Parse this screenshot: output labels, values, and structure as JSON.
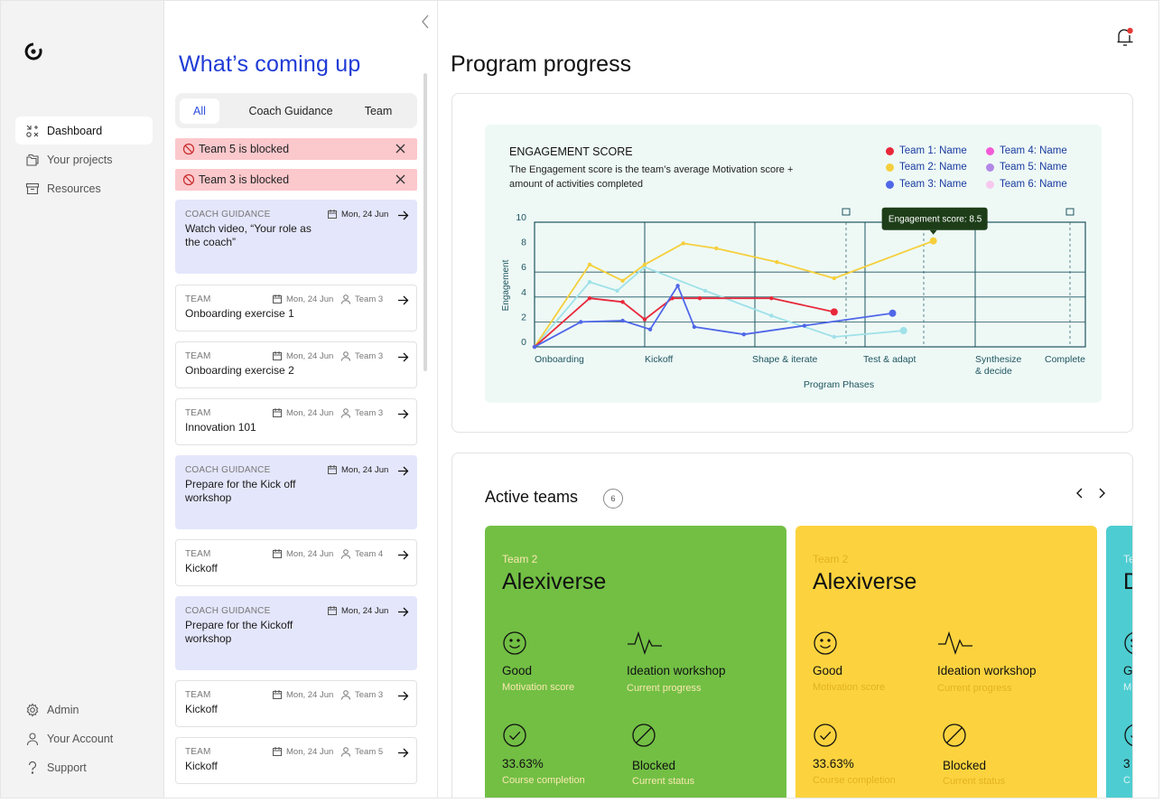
{
  "sidebar": {
    "nav": [
      {
        "label": "Dashboard",
        "icon": "dashboard-icon",
        "active": true
      },
      {
        "label": "Your projects",
        "icon": "folders-icon"
      },
      {
        "label": "Resources",
        "icon": "archive-icon"
      }
    ],
    "bottom": [
      {
        "label": "Admin",
        "icon": "gear-icon"
      },
      {
        "label": "Your Account",
        "icon": "user-icon"
      },
      {
        "label": "Support",
        "icon": "question-icon"
      }
    ]
  },
  "panel": {
    "title": "What’s coming up",
    "tabs": [
      "All",
      "Coach Guidance",
      "Team"
    ],
    "alerts": [
      "Team 5 is blocked",
      "Team 3 is blocked"
    ],
    "cards": [
      {
        "type": "guide",
        "category": "COACH GUIDANCE",
        "title": "Watch video, “Your role as the coach”",
        "date": "Mon, 24 Jun"
      },
      {
        "type": "team",
        "category": "TEAM",
        "title": "Onboarding exercise 1",
        "date": "Mon, 24 Jun",
        "team": "Team 3"
      },
      {
        "type": "team",
        "category": "TEAM",
        "title": "Onboarding exercise 2",
        "date": "Mon, 24 Jun",
        "team": "Team 3"
      },
      {
        "type": "team",
        "category": "TEAM",
        "title": "Innovation 101",
        "date": "Mon, 24 Jun",
        "team": "Team 3"
      },
      {
        "type": "guide",
        "category": "COACH GUIDANCE",
        "title": "Prepare for the Kick off workshop",
        "date": "Mon, 24 Jun"
      },
      {
        "type": "team",
        "category": "TEAM",
        "title": "Kickoff",
        "date": "Mon, 24 Jun",
        "team": "Team 4"
      },
      {
        "type": "guide",
        "category": "COACH GUIDANCE",
        "title": "Prepare for the Kickoff workshop",
        "date": "Mon, 24 Jun"
      },
      {
        "type": "team",
        "category": "TEAM",
        "title": "Kickoff",
        "date": "Mon, 24 Jun",
        "team": "Team 3"
      },
      {
        "type": "team",
        "category": "TEAM",
        "title": "Kickoff",
        "date": "Mon, 24 Jun",
        "team": "Team 5"
      }
    ]
  },
  "main": {
    "title": "Program progress",
    "notification_dot_color": "#e53935"
  },
  "chart_data": {
    "type": "line",
    "title": "ENGAGEMENT SCORE",
    "subtitle": "The Engagement score is the team’s average Motivation score + amount of activities completed",
    "xlabel": "Program Phases",
    "ylabel": "Engagement",
    "ylim": [
      0,
      10
    ],
    "yticks": [
      0,
      2,
      4,
      6,
      8,
      10
    ],
    "categories": [
      "Onboarding",
      "Kickoff",
      "Shape & iterate",
      "Test & adapt",
      "Synthesize & decide",
      "Complete"
    ],
    "tooltip": "Engagement score: 8.5",
    "grid": true,
    "legend_position": "top-right",
    "series": [
      {
        "name": "Team 1: Name",
        "color": "#e8283a",
        "x": [
          0,
          0.5,
          0.8,
          1.0,
          1.25,
          1.5,
          2.15,
          2.72
        ],
        "y": [
          0,
          3.9,
          3.6,
          2.2,
          3.9,
          3.9,
          3.9,
          2.8
        ]
      },
      {
        "name": "Team 2: Name",
        "color": "#f5cf3c",
        "x": [
          0,
          0.5,
          0.8,
          1.0,
          1.35,
          1.65,
          2.2,
          2.72,
          3.62
        ],
        "y": [
          0,
          6.6,
          5.3,
          6.6,
          8.3,
          7.9,
          6.8,
          5.5,
          8.5
        ]
      },
      {
        "name": "Team 3: Name",
        "color": "#5067e8",
        "x": [
          0,
          0.42,
          0.8,
          1.05,
          1.3,
          1.45,
          1.9,
          2.45,
          3.25
        ],
        "y": [
          0,
          2.0,
          2.1,
          1.4,
          4.9,
          1.6,
          1.0,
          1.7,
          2.7
        ]
      },
      {
        "name": "Team 4: Name",
        "color": "#f25ad6",
        "x": [],
        "y": []
      },
      {
        "name": "Team 5: Name",
        "color": "#b287e6",
        "x": [],
        "y": []
      },
      {
        "name": "Team 6: Name",
        "color": "#f7c8ee",
        "x": [],
        "y": []
      },
      {
        "name": "",
        "color": "#9fe1e8",
        "x": [
          0,
          0.5,
          0.75,
          1.0,
          1.55,
          2.15,
          2.72,
          3.35
        ],
        "y": [
          0,
          5.2,
          4.5,
          6.4,
          4.5,
          2.5,
          0.8,
          1.3
        ]
      }
    ]
  },
  "teams": {
    "title": "Active teams",
    "count": "6",
    "cards": [
      {
        "team_label": "Team 2",
        "name": "Alexiverse",
        "bg": "#72bf44",
        "label_color": "#fbe8b0",
        "motivation_value": "Good",
        "motivation_label": "Motivation score",
        "progress_value": "Ideation workshop",
        "progress_label": "Current progress",
        "completion_value": "33.63%",
        "completion_label": "Course completion",
        "status_value": "Blocked",
        "status_label": "Current status"
      },
      {
        "team_label": "Team 2",
        "name": "Alexiverse",
        "bg": "#fcd33e",
        "label_color": "#e2b122",
        "motivation_value": "Good",
        "motivation_label": "Motivation score",
        "progress_value": "Ideation workshop",
        "progress_label": "Current progress",
        "completion_value": "33.63%",
        "completion_label": "Course completion",
        "status_value": "Blocked",
        "status_label": "Current status"
      },
      {
        "team_label": "Te",
        "name": "D",
        "bg": "#4dcdd1",
        "label_color": "#dbf4f5",
        "motivation_value": "G",
        "motivation_label": "M",
        "progress_value": "",
        "progress_label": "",
        "completion_value": "3",
        "completion_label": "C",
        "status_value": "",
        "status_label": ""
      }
    ]
  }
}
